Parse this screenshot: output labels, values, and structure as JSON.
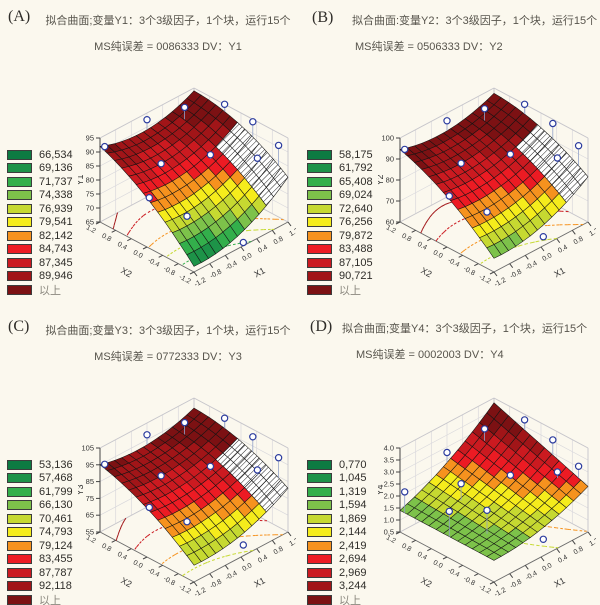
{
  "page": {
    "background": "#fbf8ee"
  },
  "legend_colors": [
    "#0d7a42",
    "#1d9348",
    "#33af4b",
    "#7dc24a",
    "#c6d931",
    "#f5ec1c",
    "#f6921e",
    "#ec1b23",
    "#cb1a20",
    "#a11518",
    "#7c1113"
  ],
  "panels": [
    {
      "label": "(A)",
      "title_line1": "拟合曲面;变量Y1：3个3级因子，1个块，运行15个",
      "title_line2": "MS纯误差 = 0086333   DV：Y1"
    },
    {
      "label": "(B)",
      "title_line1": "拟合曲面:变量Y2：3个3级因子，1个块，运行15个",
      "title_line2": "MS纯误差 = 0506333   DV：Y2"
    },
    {
      "label": "(C)",
      "title_line1": "拟合曲面;变量Y3：3个3级因子，1个块，运行15个",
      "title_line2": "MS纯误差 = 0772333   DV：Y3"
    },
    {
      "label": "(D)",
      "title_line1": "拟合曲面;变量Y4：3个3级因子，1个块，运行15个",
      "title_line2": "MS纯误差 = 0002003   DV：Y4"
    }
  ],
  "chart_data": [
    {
      "panel": "A",
      "type": "surface3d",
      "x_axis": {
        "label": "X1",
        "tick_labels": [
          "-1.2",
          "-0.8",
          "-0.4",
          "0.0",
          "0.4",
          "0.8",
          "1.2"
        ]
      },
      "y_axis": {
        "label": "X2",
        "tick_labels": [
          "-1.2",
          "-0.8",
          "-0.4",
          "0.0",
          "0.4",
          "0.8",
          "1.2"
        ]
      },
      "z_axis": {
        "label": "Y1",
        "min": 65,
        "max": 95,
        "tick_labels": [
          "65",
          "70",
          "75",
          "80",
          "85",
          "90",
          "95"
        ]
      },
      "legend_values": [
        "66,534",
        "69,136",
        "71,737",
        "74,338",
        "76,939",
        "79,541",
        "82,142",
        "84,743",
        "87,345",
        "89,946",
        "以上"
      ],
      "surface_coeffs": {
        "base": 82.5,
        "a1": 4,
        "a2": 4,
        "b1": 9.5,
        "b2": -3,
        "ab": -3
      },
      "hatch": true,
      "design_points": [
        [
          -1,
          0.9,
          0.05
        ],
        [
          0,
          1,
          0.12
        ],
        [
          0.55,
          0.75,
          0.14
        ],
        [
          1,
          0.35,
          0.12
        ],
        [
          -0.35,
          0.35,
          0.03
        ],
        [
          0.35,
          0,
          0.05
        ],
        [
          1,
          -0.25,
          0.18
        ],
        [
          1,
          -0.8,
          0.24
        ],
        [
          0.8,
          -0.55,
          0.07
        ],
        [
          -0.6,
          -0.45,
          0.02
        ],
        [
          -1,
          -0.05,
          0.04
        ],
        [
          0.05,
          -1,
          -0.14
        ]
      ]
    },
    {
      "panel": "B",
      "type": "surface3d",
      "x_axis": {
        "label": "X1",
        "tick_labels": [
          "-1.2",
          "-0.8",
          "-0.4",
          "0.0",
          "0.4",
          "0.8",
          "1.2"
        ]
      },
      "y_axis": {
        "label": "X2",
        "tick_labels": [
          "-1.2",
          "-0.8",
          "-0.4",
          "0.0",
          "0.4",
          "0.8",
          "1.2"
        ]
      },
      "z_axis": {
        "label": "Y2",
        "min": 60,
        "max": 100,
        "tick_labels": [
          "60",
          "70",
          "80",
          "90",
          "100"
        ]
      },
      "legend_values": [
        "58,175",
        "61,792",
        "65,408",
        "69,024",
        "72,640",
        "76,256",
        "79,872",
        "83,488",
        "87,105",
        "90,721",
        "以上"
      ],
      "surface_coeffs": {
        "base": 84,
        "a1": 4.5,
        "a2": 4.5,
        "b1": 11,
        "b2": -3.5,
        "ab": -3
      },
      "hatch": true,
      "design_points": [
        [
          -1,
          0.9,
          0.05
        ],
        [
          0,
          1,
          0.12
        ],
        [
          0.55,
          0.75,
          0.14
        ],
        [
          1,
          0.35,
          0.12
        ],
        [
          -0.35,
          0.35,
          0.03
        ],
        [
          0.35,
          0,
          0.05
        ],
        [
          1,
          -0.25,
          0.18
        ],
        [
          1,
          -0.8,
          0.24
        ],
        [
          0.8,
          -0.55,
          0.07
        ],
        [
          -0.6,
          -0.45,
          0.02
        ],
        [
          -1,
          -0.05,
          0.04
        ],
        [
          0.05,
          -1,
          -0.14
        ]
      ]
    },
    {
      "panel": "C",
      "type": "surface3d",
      "x_axis": {
        "label": "X1",
        "tick_labels": [
          "-1.2",
          "-0.8",
          "-0.4",
          "0.0",
          "0.4",
          "0.8",
          "1.2"
        ]
      },
      "y_axis": {
        "label": "X2",
        "tick_labels": [
          "-1.2",
          "-0.8",
          "-0.4",
          "0.0",
          "0.4",
          "0.8",
          "1.2"
        ]
      },
      "z_axis": {
        "label": "Y3",
        "min": 55,
        "max": 105,
        "tick_labels": [
          "55",
          "65",
          "75",
          "85",
          "95",
          "105"
        ]
      },
      "legend_values": [
        "53,136",
        "57,468",
        "61,799",
        "66,130",
        "70,461",
        "74,793",
        "79,124",
        "83,455",
        "87,787",
        "92,118",
        "以上"
      ],
      "surface_coeffs": {
        "base": 84,
        "a1": 5,
        "a2": 5,
        "b1": 12,
        "b2": -4,
        "ab": -3
      },
      "hatch": true,
      "design_points": [
        [
          -1,
          0.9,
          0.05
        ],
        [
          0,
          1,
          0.12
        ],
        [
          0.55,
          0.75,
          0.14
        ],
        [
          1,
          0.35,
          0.12
        ],
        [
          -0.35,
          0.35,
          0.03
        ],
        [
          0.35,
          0,
          0.05
        ],
        [
          1,
          -0.25,
          0.18
        ],
        [
          1,
          -0.8,
          0.24
        ],
        [
          0.8,
          -0.55,
          0.07
        ],
        [
          -0.6,
          -0.45,
          0.02
        ],
        [
          -1,
          -0.05,
          0.04
        ],
        [
          0.05,
          -1,
          -0.14
        ]
      ]
    },
    {
      "panel": "D",
      "type": "surface3d",
      "x_axis": {
        "label": "X1",
        "tick_labels": [
          "-1.2",
          "-0.8",
          "-0.4",
          "0.0",
          "0.4",
          "0.8",
          "1.2"
        ]
      },
      "y_axis": {
        "label": "X2",
        "tick_labels": [
          "-1.2",
          "-0.8",
          "-0.4",
          "0.0",
          "0.4",
          "0.8",
          "1.2"
        ]
      },
      "z_axis": {
        "label": "Y4",
        "min": 0.5,
        "max": 4.0,
        "tick_labels": [
          "0.5",
          "1.0",
          "1.5",
          "2.0",
          "2.5",
          "3.0",
          "3.5",
          "4.0"
        ]
      },
      "legend_values": [
        "0,770",
        "1,045",
        "1,319",
        "1,594",
        "1,869",
        "2,144",
        "2,419",
        "2,694",
        "2,969",
        "3,244",
        "以上"
      ],
      "surface_coeffs": {
        "base": 2.0,
        "a1": 0.85,
        "a2": 0.25,
        "b1": 0.35,
        "b2": 0,
        "ab": 0.35
      },
      "hatch": false,
      "design_points": [
        [
          -1,
          0.9,
          0.25
        ],
        [
          0,
          1,
          0.12
        ],
        [
          0.55,
          0.75,
          0.14
        ],
        [
          1,
          0.35,
          0.12
        ],
        [
          -0.35,
          0.35,
          0.2
        ],
        [
          0.35,
          0,
          0.05
        ],
        [
          1,
          -0.25,
          0.18
        ],
        [
          1,
          -0.8,
          0.14
        ],
        [
          0.8,
          -0.55,
          0.07
        ],
        [
          -0.6,
          -0.45,
          0.28
        ],
        [
          -1,
          -0.05,
          0.3
        ],
        [
          0.05,
          -1,
          -0.14
        ]
      ]
    }
  ]
}
